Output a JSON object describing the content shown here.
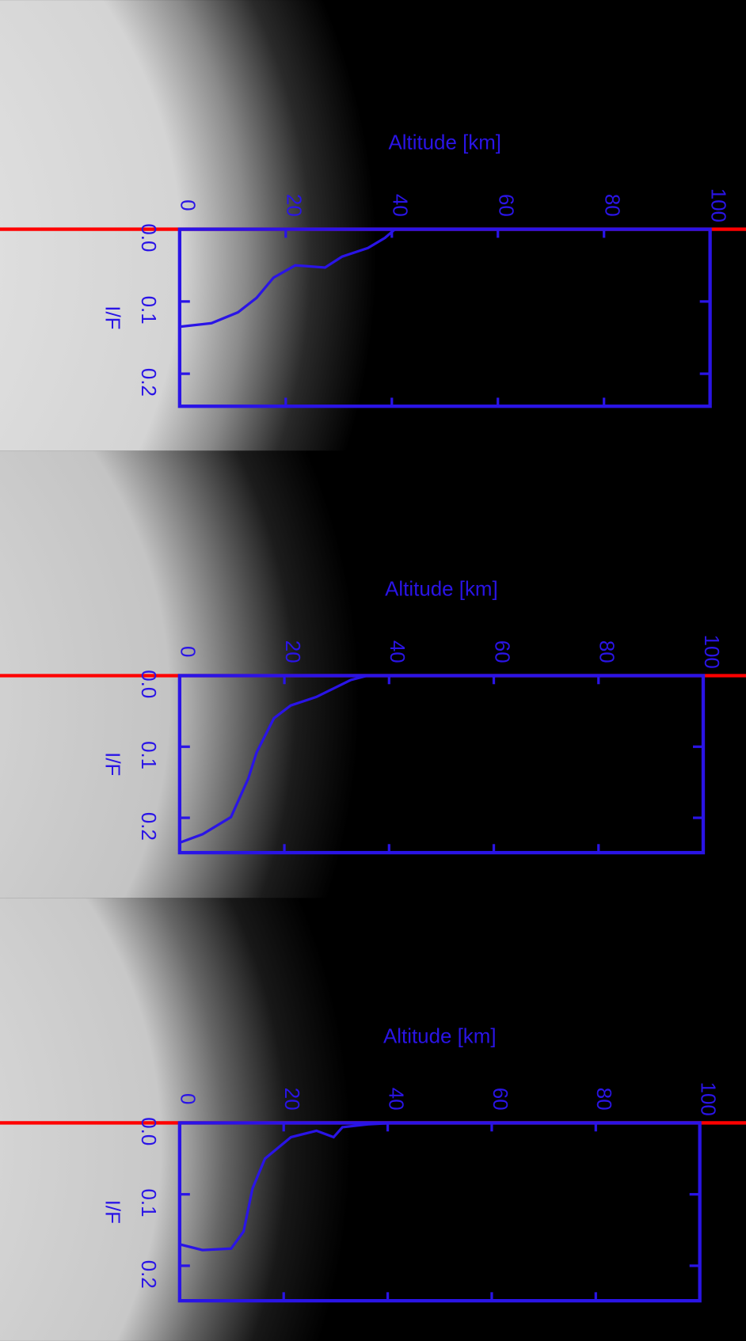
{
  "chart_data": [
    {
      "type": "line",
      "xlabel": "Altitude [km]",
      "ylabel": "I/F",
      "x": [
        0,
        6,
        11,
        14.5,
        17.7,
        21.8,
        27.4,
        30.6,
        35.5,
        38.7,
        40.6,
        100
      ],
      "values": [
        0.135,
        0.13,
        0.115,
        0.095,
        0.067,
        0.05,
        0.053,
        0.038,
        0.026,
        0.012,
        0,
        0
      ],
      "color": "#2a14e6",
      "xlim": [
        0,
        100
      ],
      "ylim": [
        0,
        0.245
      ],
      "xticks": [
        0,
        20,
        40,
        60,
        80,
        100
      ],
      "yticks": [
        {
          "value": 0,
          "label": "0.0"
        },
        0.1,
        0.2
      ]
    },
    {
      "type": "line",
      "xlabel": "Altitude [km]",
      "ylabel": "I/F",
      "x": [
        0,
        4.4,
        9.8,
        13.1,
        14.7,
        18,
        21.2,
        26.1,
        29.4,
        32.7,
        35.9,
        100
      ],
      "values": [
        0.235,
        0.223,
        0.199,
        0.145,
        0.108,
        0.06,
        0.042,
        0.03,
        0.018,
        0.006,
        0,
        0
      ],
      "color": "#2a14e6",
      "xlim": [
        0,
        100
      ],
      "ylim": [
        0,
        0.249
      ],
      "xticks": [
        0,
        20,
        40,
        60,
        80,
        100
      ],
      "yticks": [
        {
          "value": 0,
          "label": "0.0"
        },
        0.1,
        0.2
      ]
    },
    {
      "type": "line",
      "xlabel": "Altitude [km]",
      "ylabel": "I/F",
      "x": [
        0,
        4.4,
        9.9,
        12.3,
        14,
        16.4,
        21.4,
        26.3,
        29.6,
        31.3,
        36.2,
        41.1,
        100
      ],
      "values": [
        0.17,
        0.178,
        0.176,
        0.152,
        0.092,
        0.05,
        0.02,
        0.011,
        0.02,
        0.006,
        0.002,
        0,
        0
      ],
      "color": "#2a14e6",
      "xlim": [
        0,
        100
      ],
      "ylim": [
        0,
        0.249
      ],
      "xticks": [
        0,
        20,
        40,
        60,
        80,
        100
      ],
      "yticks": [
        {
          "value": 0,
          "label": "0.0"
        },
        0.1,
        0.2
      ]
    }
  ]
}
